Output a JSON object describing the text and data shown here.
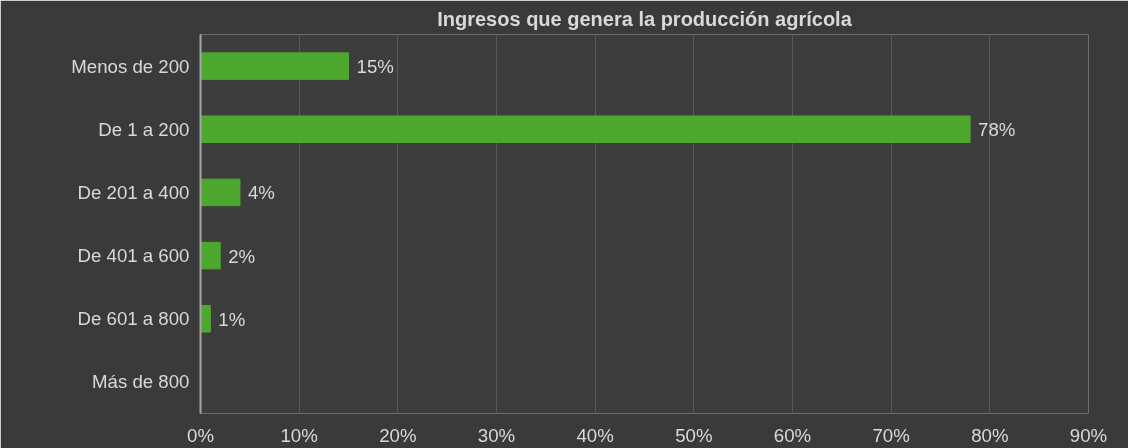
{
  "chart_data": {
    "type": "bar",
    "orientation": "horizontal",
    "title": "Ingresos que genera la producción agrícola",
    "categories": [
      "Menos de 200",
      "De 1 a 200",
      "De 201 a 400",
      "De 401 a 600",
      "De 601 a 800",
      "Más de 800"
    ],
    "values": [
      15,
      78,
      4,
      2,
      1,
      0
    ],
    "value_labels": [
      "15%",
      "78%",
      "4%",
      "2%",
      "1%",
      null
    ],
    "color": "#4ea72e",
    "xlim": [
      0,
      90
    ],
    "xticks": [
      {
        "value": 0,
        "label": "0%"
      },
      {
        "value": 10,
        "label": "10%"
      },
      {
        "value": 20,
        "label": "20%"
      },
      {
        "value": 30,
        "label": "30%"
      },
      {
        "value": 40,
        "label": "40%"
      },
      {
        "value": 50,
        "label": "50%"
      },
      {
        "value": 60,
        "label": "60%"
      },
      {
        "value": 70,
        "label": "70%"
      },
      {
        "value": 80,
        "label": "80%"
      },
      {
        "value": 90,
        "label": "90%"
      }
    ],
    "grid": "x"
  }
}
